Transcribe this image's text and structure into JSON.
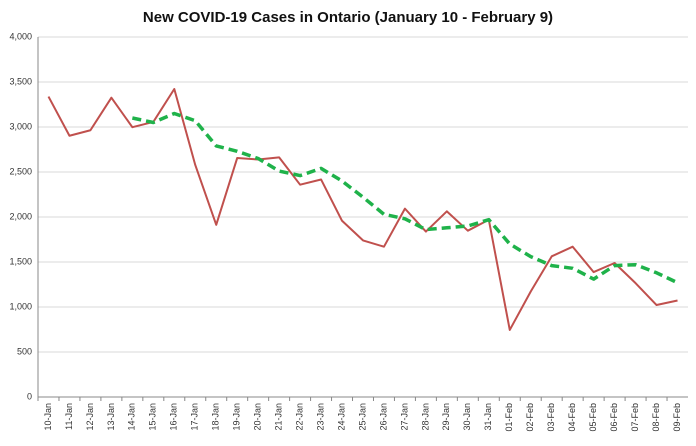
{
  "chart_data": {
    "type": "line",
    "title": "New COVID-19 Cases in Ontario (January 10 - February 9)",
    "categories": [
      "10-Jan",
      "11-Jan",
      "12-Jan",
      "13-Jan",
      "14-Jan",
      "15-Jan",
      "16-Jan",
      "17-Jan",
      "18-Jan",
      "19-Jan",
      "20-Jan",
      "21-Jan",
      "22-Jan",
      "23-Jan",
      "24-Jan",
      "25-Jan",
      "26-Jan",
      "27-Jan",
      "28-Jan",
      "29-Jan",
      "30-Jan",
      "31-Jan",
      "01-Feb",
      "02-Feb",
      "03-Feb",
      "04-Feb",
      "05-Feb",
      "06-Feb",
      "07-Feb",
      "08-Feb",
      "09-Feb"
    ],
    "series": [
      {
        "color": "#c0504d",
        "dashed": false,
        "values": [
          3338,
          2903,
          2964,
          3326,
          2998,
          3056,
          3422,
          2578,
          1913,
          2655,
          2639,
          2662,
          2359,
          2417,
          1958,
          1740,
          1670,
          2093,
          1838,
          2063,
          1848,
          1969,
          745,
          1172,
          1563,
          1670,
          1388,
          1489,
          1265,
          1022,
          1072
        ]
      },
      {
        "color": "#1fb24a",
        "dashed": true,
        "values": [
          null,
          null,
          null,
          null,
          3100,
          3050,
          3150,
          3070,
          2790,
          2730,
          2650,
          2510,
          2460,
          2540,
          2400,
          2220,
          2030,
          1980,
          1860,
          1880,
          1900,
          1970,
          1700,
          1560,
          1460,
          1430,
          1310,
          1460,
          1470,
          1380,
          1270
        ]
      }
    ],
    "ylim": [
      0,
      4000
    ],
    "yticks": [
      0,
      500,
      {
        "value": 1000,
        "label": "1,000"
      },
      {
        "value": 1500,
        "label": "1,500"
      },
      {
        "value": 2000,
        "label": "2,000"
      },
      {
        "value": 2500,
        "label": "2,500"
      },
      {
        "value": 3000,
        "label": "3,000"
      },
      {
        "value": 3500,
        "label": "3,500"
      },
      {
        "value": 4000,
        "label": "4,000"
      }
    ],
    "grid": true
  }
}
